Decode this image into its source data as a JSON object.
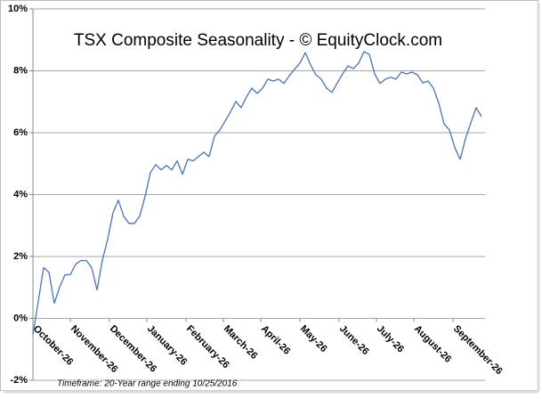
{
  "chart_data": {
    "type": "line",
    "title": "TSX Composite Seasonality - © EquityClock.com",
    "footnote": "Timeframe: 20-Year range ending 10/25/2016",
    "x": [
      0,
      3,
      6,
      9,
      12,
      15,
      18,
      21,
      24,
      27,
      30,
      33,
      36,
      39,
      42,
      45,
      48,
      51,
      54,
      57,
      60,
      63,
      66,
      69,
      72,
      75,
      78,
      81,
      84,
      87,
      90,
      93,
      96,
      99,
      102,
      105,
      108,
      111,
      114,
      117,
      120,
      123,
      126,
      129,
      132,
      135,
      138,
      141,
      144,
      147,
      150,
      153,
      156,
      159,
      162,
      165,
      168,
      171,
      174,
      177,
      180,
      183,
      186,
      189,
      192,
      195,
      198,
      201,
      204,
      207,
      210,
      213,
      216,
      219,
      222,
      225,
      228,
      231,
      234,
      237,
      240,
      243,
      246,
      249,
      252
    ],
    "series": [
      {
        "name": "TSX Composite",
        "color": "#4a72b8",
        "values": [
          -0.52,
          0.55,
          1.64,
          1.49,
          0.49,
          1.01,
          1.41,
          1.41,
          1.75,
          1.87,
          1.87,
          1.64,
          0.92,
          1.87,
          2.56,
          3.42,
          3.82,
          3.3,
          3.07,
          3.07,
          3.3,
          3.94,
          4.71,
          4.97,
          4.8,
          4.94,
          4.8,
          5.09,
          4.66,
          5.14,
          5.09,
          5.23,
          5.37,
          5.23,
          5.89,
          6.09,
          6.38,
          6.67,
          7.01,
          6.81,
          7.16,
          7.44,
          7.27,
          7.44,
          7.73,
          7.67,
          7.73,
          7.59,
          7.84,
          8.05,
          8.25,
          8.59,
          8.19,
          7.87,
          7.73,
          7.44,
          7.3,
          7.61,
          7.9,
          8.16,
          8.07,
          8.25,
          8.62,
          8.53,
          7.9,
          7.59,
          7.73,
          7.79,
          7.73,
          7.96,
          7.9,
          7.96,
          7.87,
          7.61,
          7.67,
          7.44,
          6.95,
          6.29,
          6.09,
          5.52,
          5.14,
          5.8,
          6.32,
          6.81,
          6.52
        ]
      }
    ],
    "xlim": [
      0,
      254
    ],
    "xticks": [
      {
        "value": 0,
        "label": "October-26"
      },
      {
        "value": 21,
        "label": "November-26"
      },
      {
        "value": 43,
        "label": "December-26"
      },
      {
        "value": 64,
        "label": "January-26"
      },
      {
        "value": 86,
        "label": "February-26"
      },
      {
        "value": 107,
        "label": "March-26"
      },
      {
        "value": 128,
        "label": "April-26"
      },
      {
        "value": 150,
        "label": "May-26"
      },
      {
        "value": 172,
        "label": "June-26"
      },
      {
        "value": 193,
        "label": "July-26"
      },
      {
        "value": 214,
        "label": "August-26"
      },
      {
        "value": 236,
        "label": "September-26"
      }
    ],
    "ylim": [
      -2,
      10
    ],
    "yticks": [
      {
        "value": -2,
        "label": "-2%"
      },
      {
        "value": 0,
        "label": "0%"
      },
      {
        "value": 2,
        "label": "2%"
      },
      {
        "value": 4,
        "label": "4%"
      },
      {
        "value": 6,
        "label": "6%"
      },
      {
        "value": 8,
        "label": "8%"
      },
      {
        "value": 10,
        "label": "10%"
      }
    ],
    "grid": true
  }
}
